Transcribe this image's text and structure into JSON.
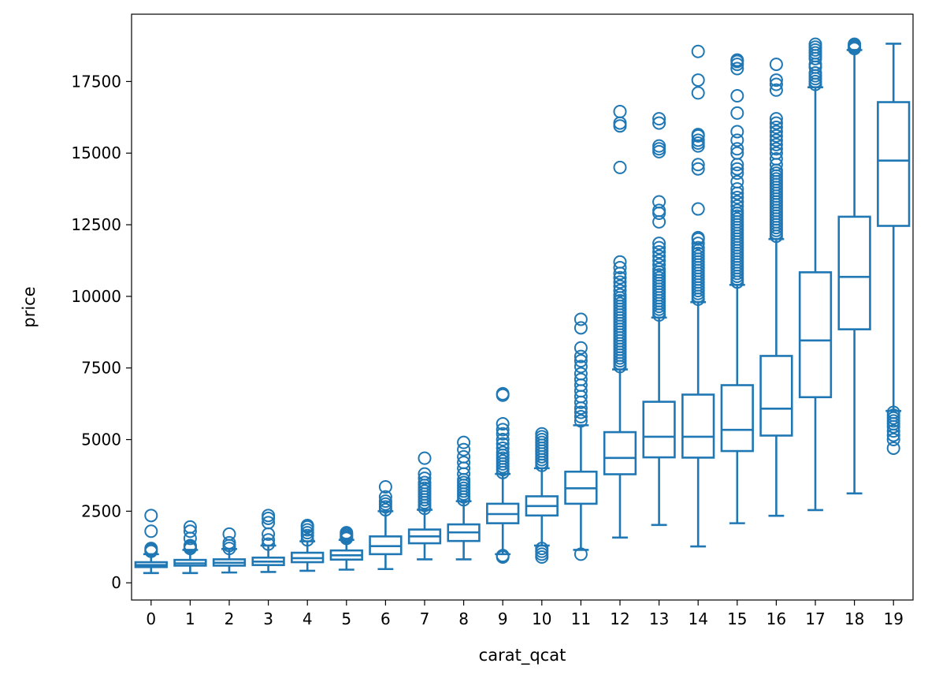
{
  "chart_data": {
    "type": "box",
    "title": "",
    "xlabel": "carat_qcat",
    "ylabel": "price",
    "ylim": [
      -600,
      19850
    ],
    "yticks": [
      0,
      2500,
      5000,
      7500,
      10000,
      12500,
      15000,
      17500
    ],
    "color": "#1f77b4",
    "grid": false,
    "boxes": [
      {
        "category": "0",
        "whislo": 340,
        "q1": 550,
        "med": 620,
        "q3": 720,
        "whishi": 1000,
        "fliers": [
          1100,
          1150,
          1200,
          1800,
          2350
        ]
      },
      {
        "category": "1",
        "whislo": 340,
        "q1": 600,
        "med": 680,
        "q3": 800,
        "whishi": 1150,
        "fliers": [
          1200,
          1250,
          1300,
          1550,
          1800,
          1950
        ]
      },
      {
        "category": "2",
        "whislo": 360,
        "q1": 600,
        "med": 700,
        "q3": 820,
        "whishi": 1180,
        "fliers": [
          1200,
          1300,
          1400,
          1700
        ]
      },
      {
        "category": "3",
        "whislo": 380,
        "q1": 620,
        "med": 740,
        "q3": 880,
        "whishi": 1300,
        "fliers": [
          1350,
          1500,
          1700,
          2100,
          2250,
          2350
        ]
      },
      {
        "category": "4",
        "whislo": 420,
        "q1": 720,
        "med": 860,
        "q3": 1050,
        "whishi": 1450,
        "fliers": [
          1500,
          1650,
          1750,
          1850,
          1950,
          2000
        ]
      },
      {
        "category": "5",
        "whislo": 460,
        "q1": 810,
        "med": 960,
        "q3": 1130,
        "whishi": 1500,
        "fliers": [
          1550,
          1600,
          1650,
          1700,
          1750
        ]
      },
      {
        "category": "6",
        "whislo": 480,
        "q1": 1000,
        "med": 1280,
        "q3": 1620,
        "whishi": 2500,
        "fliers": [
          2550,
          2650,
          2750,
          2850,
          3000,
          3350
        ]
      },
      {
        "category": "7",
        "whislo": 820,
        "q1": 1380,
        "med": 1620,
        "q3": 1860,
        "whishi": 2550,
        "fliers": [
          2600,
          2700,
          2800,
          2900,
          3000,
          3100,
          3200,
          3300,
          3400,
          3500,
          3650,
          3800,
          4350
        ]
      },
      {
        "category": "8",
        "whislo": 820,
        "q1": 1460,
        "med": 1760,
        "q3": 2040,
        "whishi": 2850,
        "fliers": [
          2900,
          3000,
          3100,
          3200,
          3300,
          3400,
          3500,
          3600,
          3800,
          4000,
          4200,
          4400,
          4650,
          4900
        ]
      },
      {
        "category": "9",
        "whislo": 1000,
        "q1": 2080,
        "med": 2400,
        "q3": 2760,
        "whishi": 3800,
        "fliers": [
          900,
          950,
          3850,
          3950,
          4050,
          4150,
          4250,
          4350,
          4450,
          4550,
          4700,
          4850,
          5000,
          5200,
          5350,
          5550,
          6550,
          6600
        ]
      },
      {
        "category": "10",
        "whislo": 1300,
        "q1": 2350,
        "med": 2680,
        "q3": 3020,
        "whishi": 4000,
        "fliers": [
          900,
          1000,
          1100,
          1200,
          4100,
          4200,
          4300,
          4400,
          4500,
          4600,
          4700,
          4800,
          4900,
          5000,
          5100,
          5200
        ]
      },
      {
        "category": "11",
        "whislo": 1150,
        "q1": 2760,
        "med": 3300,
        "q3": 3880,
        "whishi": 5500,
        "fliers": [
          1000,
          5650,
          5800,
          5950,
          6100,
          6300,
          6500,
          6700,
          6900,
          7100,
          7300,
          7550,
          7750,
          7900,
          8200,
          8900,
          9200
        ]
      },
      {
        "category": "12",
        "whislo": 1580,
        "q1": 3790,
        "med": 4360,
        "q3": 5260,
        "whishi": 7450,
        "fliers": [
          7550,
          7650,
          7750,
          7850,
          7950,
          8050,
          8150,
          8250,
          8350,
          8450,
          8550,
          8650,
          8750,
          8850,
          8950,
          9050,
          9150,
          9250,
          9350,
          9450,
          9550,
          9650,
          9750,
          9850,
          9950,
          10050,
          10200,
          10350,
          10500,
          10650,
          10800,
          11000,
          11200,
          14500,
          15950,
          16050,
          16450
        ]
      },
      {
        "category": "13",
        "whislo": 2020,
        "q1": 4380,
        "med": 5100,
        "q3": 6320,
        "whishi": 9260,
        "fliers": [
          9350,
          9450,
          9550,
          9650,
          9750,
          9850,
          9950,
          10050,
          10150,
          10250,
          10350,
          10450,
          10550,
          10650,
          10750,
          10850,
          10950,
          11100,
          11250,
          11400,
          11550,
          11700,
          11850,
          12600,
          12900,
          13000,
          13300,
          15050,
          15150,
          15250,
          16050,
          16200
        ]
      },
      {
        "category": "14",
        "whislo": 1270,
        "q1": 4370,
        "med": 5100,
        "q3": 6570,
        "whishi": 9800,
        "fliers": [
          9900,
          10000,
          10100,
          10200,
          10300,
          10400,
          10500,
          10600,
          10700,
          10800,
          10900,
          11000,
          11100,
          11200,
          11300,
          11400,
          11500,
          11600,
          11700,
          11850,
          12000,
          12050,
          13050,
          14450,
          14600,
          15250,
          15350,
          15450,
          15600,
          15650,
          17100,
          17550,
          18550
        ]
      },
      {
        "category": "15",
        "whislo": 2080,
        "q1": 4600,
        "med": 5340,
        "q3": 6900,
        "whishi": 10400,
        "fliers": [
          10500,
          10600,
          10700,
          10800,
          10900,
          11000,
          11100,
          11200,
          11300,
          11400,
          11500,
          11600,
          11700,
          11800,
          11900,
          12000,
          12100,
          12200,
          12300,
          12400,
          12500,
          12600,
          12700,
          12800,
          12900,
          13000,
          13150,
          13300,
          13450,
          13600,
          13750,
          14000,
          14300,
          14450,
          14600,
          15000,
          15150,
          15450,
          15750,
          16400,
          17000,
          17950,
          18100,
          18200,
          18250
        ]
      },
      {
        "category": "16",
        "whislo": 2340,
        "q1": 5140,
        "med": 6080,
        "q3": 7920,
        "whishi": 12000,
        "fliers": [
          12100,
          12200,
          12300,
          12400,
          12500,
          12600,
          12700,
          12800,
          12900,
          13000,
          13100,
          13200,
          13300,
          13400,
          13500,
          13600,
          13700,
          13800,
          13900,
          14000,
          14100,
          14200,
          14300,
          14400,
          14600,
          14800,
          15000,
          15150,
          15300,
          15450,
          15600,
          15750,
          15900,
          16050,
          16200,
          17200,
          17400,
          17550,
          18100
        ]
      },
      {
        "category": "17",
        "whislo": 2540,
        "q1": 6480,
        "med": 8460,
        "q3": 10840,
        "whishi": 17300,
        "fliers": [
          17400,
          17500,
          17600,
          17700,
          17800,
          18000,
          18100,
          18300,
          18400,
          18500,
          18600,
          18700,
          18800
        ]
      },
      {
        "category": "18",
        "whislo": 3120,
        "q1": 8850,
        "med": 10680,
        "q3": 12780,
        "whishi": 18600,
        "fliers": [
          18650,
          18700,
          18750,
          18800
        ]
      },
      {
        "category": "19",
        "whislo": 6000,
        "q1": 12460,
        "med": 14740,
        "q3": 16780,
        "whishi": 18820,
        "fliers": [
          4700,
          5000,
          5150,
          5300,
          5450,
          5550,
          5650,
          5750,
          5850,
          5950
        ]
      }
    ]
  }
}
